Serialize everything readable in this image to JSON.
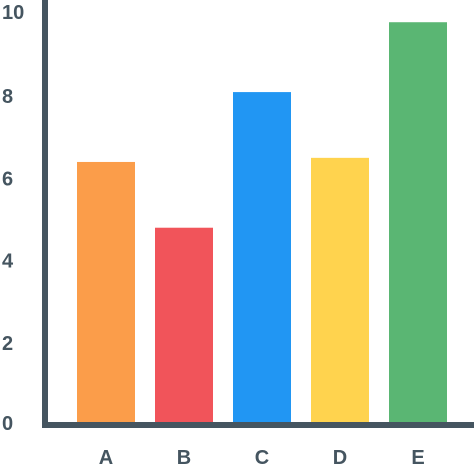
{
  "chart_data": {
    "type": "bar",
    "title": "",
    "xlabel": "",
    "ylabel": "",
    "categories": [
      "A",
      "B",
      "C",
      "D",
      "E"
    ],
    "values": [
      6.4,
      4.8,
      8.1,
      6.5,
      9.8
    ],
    "colors": [
      "#FB9D4A",
      "#F1545A",
      "#2196F3",
      "#FFD34E",
      "#5AB673"
    ],
    "y_ticks": [
      "0",
      "2",
      "4",
      "6",
      "8",
      "10"
    ],
    "ylim": [
      0,
      10
    ],
    "axis_color": "#455560",
    "grid": false,
    "legend": "none"
  }
}
